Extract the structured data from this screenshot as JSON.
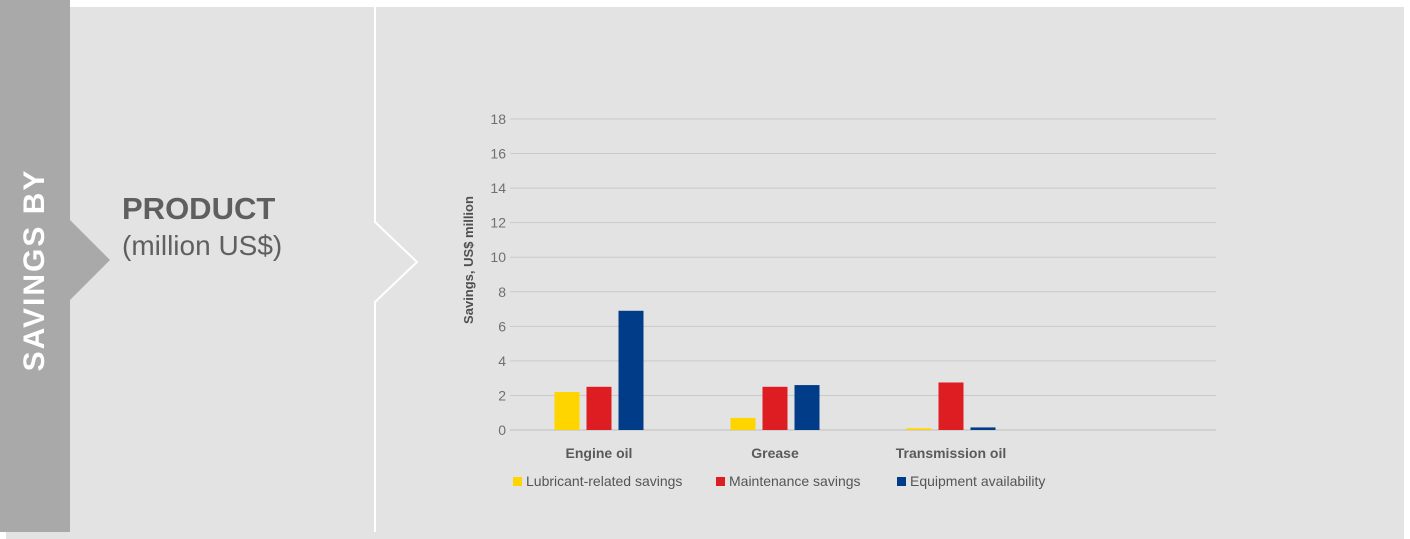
{
  "side_label": "SAVINGS BY",
  "heading": {
    "main": "PRODUCT",
    "sub": "(million US$)"
  },
  "colors": {
    "lubricant": "#FFD500",
    "maintenance": "#DD1D21",
    "equipment": "#003C88"
  },
  "chart_data": {
    "type": "bar",
    "title": "",
    "xlabel": "",
    "ylabel": "Savings, US$ million",
    "categories": [
      "Engine oil",
      "Grease",
      "Transmission oil"
    ],
    "ylim": [
      0,
      18
    ],
    "yticks": [
      "0",
      "2",
      "4",
      "6",
      "8",
      "10",
      "12",
      "14",
      "16",
      "18"
    ],
    "grid": true,
    "legend_position": "bottom",
    "series": [
      {
        "name": "Lubricant-related savings",
        "color": "#FFD500",
        "values": [
          2.2,
          0.7,
          0.1
        ]
      },
      {
        "name": "Maintenance savings",
        "color": "#DD1D21",
        "values": [
          2.5,
          2.5,
          2.75
        ]
      },
      {
        "name": "Equipment availability",
        "color": "#003C88",
        "values": [
          6.9,
          2.6,
          0.15
        ]
      }
    ]
  }
}
